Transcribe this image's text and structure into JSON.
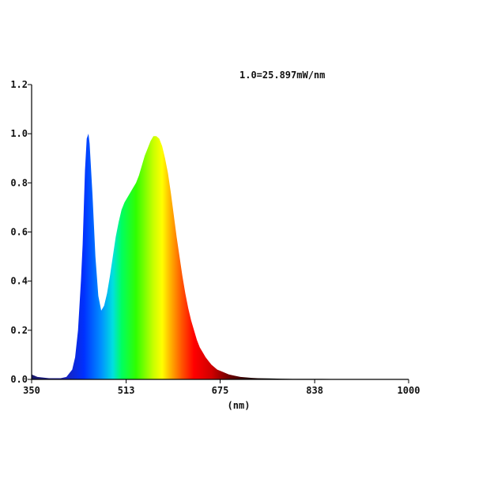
{
  "chart_data": {
    "type": "area",
    "title": "",
    "annotation": "1.0=25.897mW/nm",
    "xlabel": "(nm)",
    "ylabel": "",
    "xlim": [
      350,
      1000
    ],
    "ylim": [
      0,
      1.2
    ],
    "x_ticks": [
      350,
      513,
      675,
      838,
      1000
    ],
    "y_ticks": [
      "0.0",
      "0.2",
      "0.4",
      "0.6",
      "0.8",
      "1.0",
      "1.2"
    ],
    "grid": false,
    "fill": "visible-spectrum-gradient",
    "series": [
      {
        "x": [
          350,
          360,
          380,
          400,
          410,
          420,
          425,
          430,
          435,
          438,
          440,
          442,
          445,
          448,
          450,
          455,
          460,
          465,
          470,
          475,
          480,
          485,
          490,
          495,
          500,
          505,
          510,
          515,
          520,
          525,
          530,
          535,
          540,
          545,
          550,
          555,
          560,
          565,
          570,
          575,
          580,
          585,
          590,
          595,
          600,
          605,
          610,
          615,
          620,
          625,
          630,
          635,
          640,
          645,
          650,
          655,
          660,
          665,
          670,
          675,
          680,
          690,
          700,
          710,
          720,
          730,
          740,
          760,
          780,
          800,
          850,
          900,
          950,
          1000
        ],
        "y": [
          0.02,
          0.01,
          0.005,
          0.005,
          0.01,
          0.04,
          0.09,
          0.2,
          0.4,
          0.55,
          0.7,
          0.85,
          0.98,
          1.0,
          0.96,
          0.75,
          0.5,
          0.34,
          0.28,
          0.3,
          0.35,
          0.42,
          0.5,
          0.58,
          0.64,
          0.69,
          0.72,
          0.74,
          0.76,
          0.78,
          0.8,
          0.83,
          0.87,
          0.91,
          0.94,
          0.97,
          0.99,
          0.99,
          0.98,
          0.95,
          0.9,
          0.84,
          0.76,
          0.67,
          0.58,
          0.5,
          0.42,
          0.35,
          0.29,
          0.24,
          0.2,
          0.16,
          0.13,
          0.11,
          0.09,
          0.075,
          0.06,
          0.05,
          0.04,
          0.035,
          0.03,
          0.02,
          0.015,
          0.01,
          0.008,
          0.006,
          0.005,
          0.004,
          0.003,
          0.002,
          0.002,
          0.001,
          0.001,
          0.0
        ]
      }
    ]
  }
}
